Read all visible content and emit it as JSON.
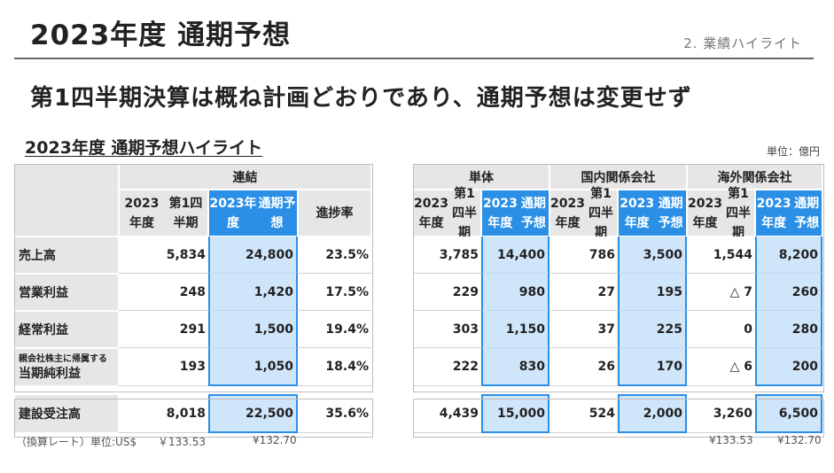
{
  "header": {
    "title": "2023年度 通期予想",
    "section": "2. 業績ハイライト",
    "headline": "第1四半期決算は概ね計画どおりであり、通期予想は変更せず",
    "table_title": "2023年度 通期予想ハイライト",
    "unit": "単位：億円"
  },
  "consolidated": {
    "group_label": "連結",
    "col_q1": [
      "2023年度",
      "第1四半期"
    ],
    "col_fc": [
      "2023年度",
      "通期予想"
    ],
    "col_rate": "進捗率",
    "rows": [
      {
        "label": "売上高",
        "q1": "5,834",
        "fc": "24,800",
        "rate": "23.5%"
      },
      {
        "label": "営業利益",
        "q1": "248",
        "fc": "1,420",
        "rate": "17.5%"
      },
      {
        "label": "経常利益",
        "q1": "291",
        "fc": "1,500",
        "rate": "19.4%"
      },
      {
        "label_small": "親会社株主に帰属する",
        "label": "当期純利益",
        "q1": "193",
        "fc": "1,050",
        "rate": "18.4%"
      }
    ],
    "orders": {
      "label": "建設受注高",
      "q1": "8,018",
      "fc": "22,500",
      "rate": "35.6%"
    }
  },
  "segments": {
    "groups": [
      "単体",
      "国内関係会社",
      "海外関係会社"
    ],
    "col_q1": [
      "2023年度",
      "第1四半期"
    ],
    "col_fc": [
      "2023年度",
      "通期予想"
    ],
    "rows": [
      [
        "3,785",
        "14,400",
        "786",
        "3,500",
        "1,544",
        "8,200"
      ],
      [
        "229",
        "980",
        "27",
        "195",
        "△ 7",
        "260"
      ],
      [
        "303",
        "1,150",
        "37",
        "225",
        "0",
        "280"
      ],
      [
        "222",
        "830",
        "26",
        "170",
        "△ 6",
        "200"
      ]
    ],
    "orders": [
      "4,439",
      "15,000",
      "524",
      "2,000",
      "3,260",
      "6,500"
    ]
  },
  "footnotes": {
    "left_label": "（換算レート）単位:US$",
    "left_q1": "￥133.53",
    "left_fc": "¥132.70",
    "right_q1": "¥133.53",
    "right_fc": "¥132.70"
  }
}
